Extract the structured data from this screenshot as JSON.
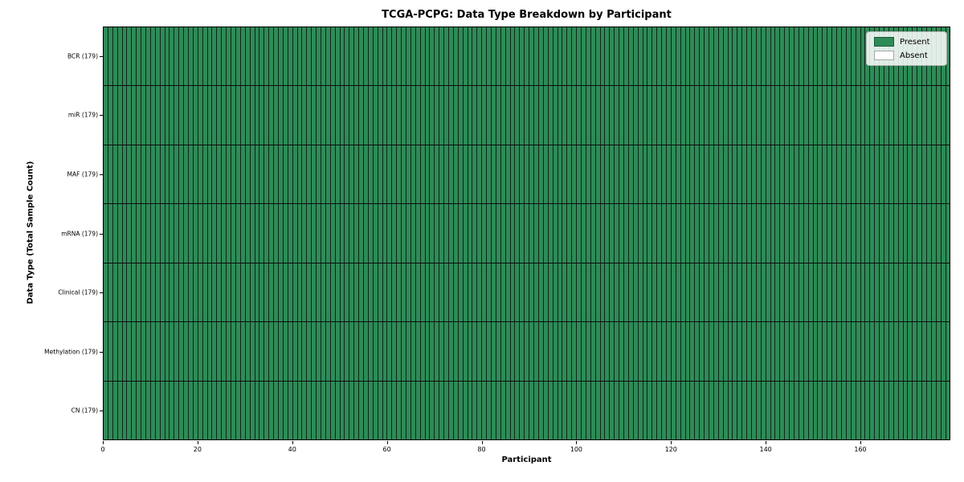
{
  "title": "TCGA-PCPG: Data Type Breakdown by Participant",
  "chart_data": {
    "type": "heatmap",
    "title": "TCGA-PCPG: Data Type Breakdown by Participant",
    "xlabel": "Participant",
    "ylabel": "Data Type (Total Sample Count)",
    "x_range": [
      0,
      179
    ],
    "n_participants": 179,
    "x_ticks": [
      0,
      20,
      40,
      60,
      80,
      100,
      120,
      140,
      160
    ],
    "rows": [
      {
        "label": "BCR (179)",
        "data_type": "BCR",
        "total_sample_count": 179,
        "present_count": 179,
        "absent_count": 0
      },
      {
        "label": "miR (179)",
        "data_type": "miR",
        "total_sample_count": 179,
        "present_count": 179,
        "absent_count": 0
      },
      {
        "label": "MAF (179)",
        "data_type": "MAF",
        "total_sample_count": 179,
        "present_count": 179,
        "absent_count": 0
      },
      {
        "label": "mRNA (179)",
        "data_type": "mRNA",
        "total_sample_count": 179,
        "present_count": 179,
        "absent_count": 0
      },
      {
        "label": "Clinical (179)",
        "data_type": "Clinical",
        "total_sample_count": 179,
        "present_count": 179,
        "absent_count": 0
      },
      {
        "label": "Methylation (179)",
        "data_type": "Methylation",
        "total_sample_count": 179,
        "present_count": 179,
        "absent_count": 0
      },
      {
        "label": "CN (179)",
        "data_type": "CN",
        "total_sample_count": 179,
        "present_count": 179,
        "absent_count": 0
      }
    ],
    "legend": {
      "position": "upper right",
      "entries": [
        {
          "label": "Present",
          "color": "#2e8b57"
        },
        {
          "label": "Absent",
          "color": "#ffffff"
        }
      ]
    },
    "colors": {
      "present": "#2e8b57",
      "absent": "#ffffff",
      "cell_edge": "rgba(0,0,0,0.72)",
      "row_separator": "#0d0d0d",
      "spine": "#000000"
    },
    "grid": "cell-edges"
  }
}
